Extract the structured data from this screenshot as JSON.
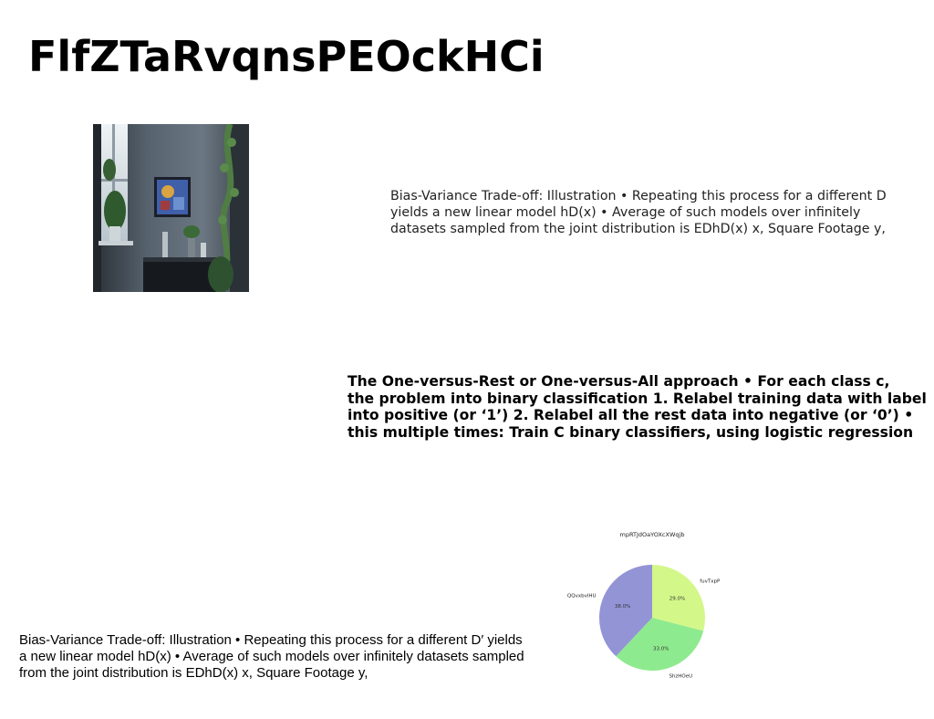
{
  "page": {
    "title": "FlfZTaRvqnsPEOckHCi"
  },
  "text_blocks": {
    "block1": "Bias-Variance Trade-off: Illustration • Repeating this process for a different D\u001b yields a new linear model hD(x) • Average of such models over infinitely datasets sampled from the joint distribution is EDhD(x) x, Square Footage y,",
    "block2_lines": [
      "The One-versus-Rest or One-versus-All approach • For each class c,",
      "the problem into binary classification 1. Relabel training data with label",
      "into positive (or ‘1’) 2. Relabel all the rest data into negative (or ‘0’) •",
      "this multiple times: Train C binary classifiers, using logistic regression"
    ],
    "block3": "Bias-Variance Trade-off: Illustration • Repeating this process for a different D′ yields a new linear model hD(x) • Average of such models over infinitely datasets sampled from the joint distribution is EDhD(x) x, Square Footage y,"
  },
  "photo": {
    "icon": "interior-room-photo",
    "colors": {
      "wall": "#4a5560",
      "dark": "#1d2228",
      "window": "#dfe6ea",
      "plant": "#3f6b3a",
      "painting": "#3f5fa8"
    }
  },
  "chart_data": {
    "type": "pie",
    "title": "mpRTJdOaYOXcXWqjb",
    "categories": [
      "fuvTxpP",
      "ShzHOeU",
      "QQvxbvlHU"
    ],
    "values": [
      29.0,
      33.0,
      38.0
    ],
    "value_labels": [
      "29.0%",
      "33.0%",
      "38.0%"
    ],
    "colors": [
      "#d4f78a",
      "#8eea8e",
      "#9394d6"
    ],
    "start_angle_deg": 90,
    "direction": "clockwise",
    "legend": "none"
  }
}
